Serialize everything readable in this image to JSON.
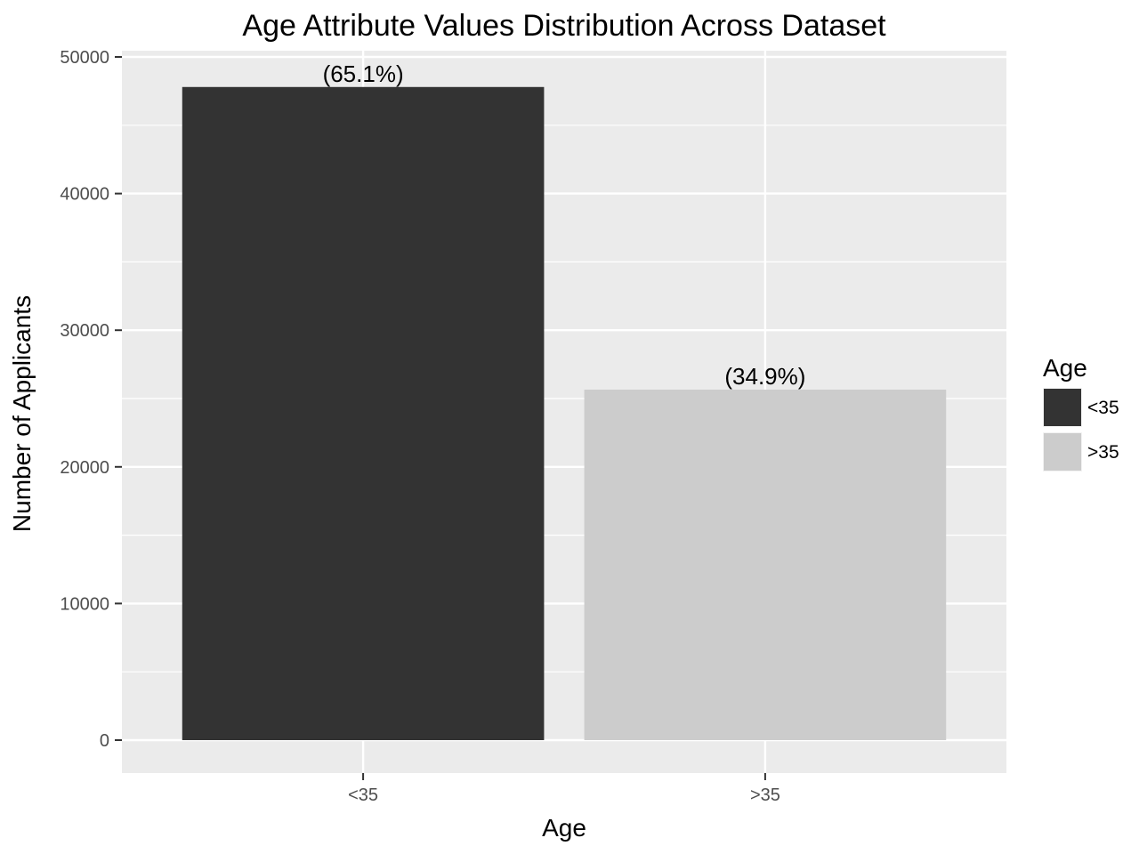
{
  "chart_data": {
    "type": "bar",
    "title": "Age Attribute Values Distribution Across Dataset",
    "xlabel": "Age",
    "ylabel": "Number of Applicants",
    "categories": [
      "<35",
      ">35"
    ],
    "values": [
      47800,
      25650
    ],
    "data_labels": [
      "(65.1%)",
      "(34.9%)"
    ],
    "colors": [
      "#333333",
      "#cccccc"
    ],
    "ylim": [
      0,
      52400
    ],
    "yticks": [
      0,
      10000,
      20000,
      30000,
      40000,
      50000
    ],
    "ytick_labels": [
      "0",
      "10000",
      "20000",
      "30000",
      "40000",
      "50000"
    ],
    "grid": true,
    "panel_background": "#ebebeb",
    "legend": {
      "title": "Age",
      "position": "right",
      "entries": [
        "<35",
        ">35"
      ]
    }
  }
}
